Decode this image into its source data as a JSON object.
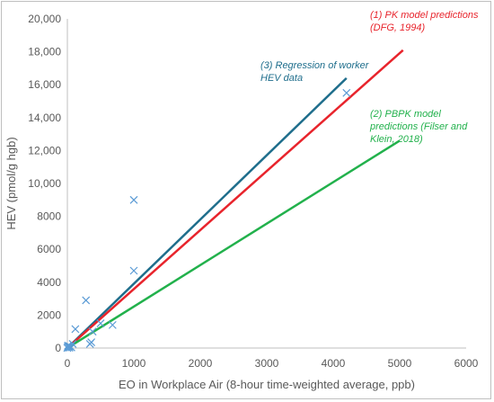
{
  "chart_data": {
    "type": "scatter",
    "xlabel": "EO in Workplace Air (8-hour time-weighted average, ppb)",
    "ylabel": "HEV (pmol/g hgb)",
    "xlim": [
      0,
      6000
    ],
    "ylim": [
      0,
      20000
    ],
    "x_ticks": [
      "0",
      "1000",
      "2000",
      "3000",
      "4000",
      "5000",
      "6000"
    ],
    "y_ticks": [
      "0",
      "2000",
      "4000",
      "6000",
      "8000",
      "10,000",
      "12,000",
      "14,000",
      "16,000",
      "18,000",
      "20,000"
    ],
    "grid": false,
    "series": [
      {
        "type": "scatter",
        "marker": "x",
        "color": "#5b9bd5",
        "points": [
          [
            0,
            0
          ],
          [
            5,
            80
          ],
          [
            10,
            150
          ],
          [
            20,
            60
          ],
          [
            25,
            120
          ],
          [
            30,
            20
          ],
          [
            40,
            100
          ],
          [
            60,
            40
          ],
          [
            80,
            250
          ],
          [
            120,
            1150
          ],
          [
            280,
            2900
          ],
          [
            340,
            250
          ],
          [
            360,
            350
          ],
          [
            380,
            1000
          ],
          [
            500,
            1500
          ],
          [
            680,
            1400
          ],
          [
            1000,
            4700
          ],
          [
            1000,
            9000
          ],
          [
            4200,
            15500
          ]
        ]
      },
      {
        "type": "line",
        "color": "#1f6e8c",
        "points": [
          [
            0,
            0
          ],
          [
            4200,
            16400
          ]
        ]
      },
      {
        "type": "line",
        "color": "#e8242c",
        "points": [
          [
            0,
            0
          ],
          [
            5050,
            18100
          ]
        ]
      },
      {
        "type": "line",
        "color": "#22b14c",
        "points": [
          [
            0,
            0
          ],
          [
            5000,
            12600
          ]
        ]
      }
    ],
    "annotations": [
      {
        "lines": [
          "(1) PK model predictions",
          "(DFG, 1994)"
        ],
        "color": "#e8242c"
      },
      {
        "lines": [
          "(3) Regression of worker",
          "HEV data"
        ],
        "color": "#1f6e8c"
      },
      {
        "lines": [
          "(2) PBPK model",
          "predictions (Filser and",
          "Klein, 2018)"
        ],
        "color": "#22b14c"
      }
    ]
  }
}
